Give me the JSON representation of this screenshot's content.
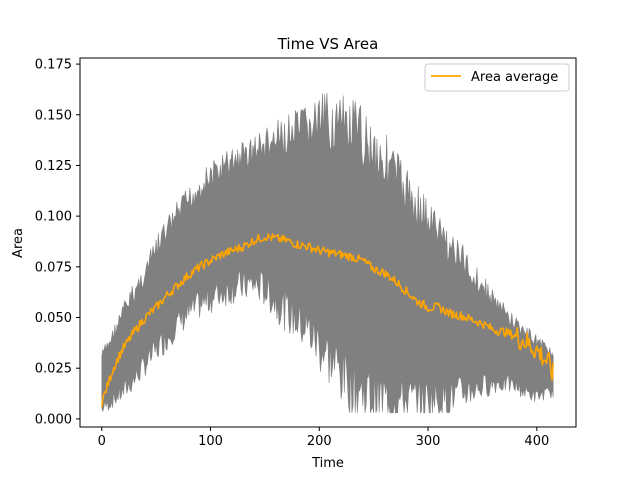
{
  "chart_data": {
    "type": "line",
    "title": "Time VS Area",
    "xlabel": "Time",
    "ylabel": "Area",
    "xlim": [
      -20,
      436
    ],
    "ylim": [
      -0.004,
      0.178
    ],
    "xticks": [
      0,
      100,
      200,
      300,
      400
    ],
    "xtick_labels": [
      "0",
      "100",
      "200",
      "300",
      "400"
    ],
    "yticks": [
      0.0,
      0.025,
      0.05,
      0.075,
      0.1,
      0.125,
      0.15,
      0.175
    ],
    "ytick_labels": [
      "0.000",
      "0.025",
      "0.050",
      "0.075",
      "0.100",
      "0.125",
      "0.150",
      "0.175"
    ],
    "grid": false,
    "legend": {
      "location": "top-right",
      "entries": [
        "Area average"
      ]
    },
    "colors": {
      "band": "#808080",
      "average": "#FFA500",
      "axes": "#000000",
      "legend_border": "#cccccc"
    },
    "series": [
      {
        "name": "Area average",
        "role": "line",
        "x": [
          0,
          5,
          10,
          15,
          20,
          30,
          40,
          50,
          60,
          70,
          80,
          90,
          100,
          110,
          120,
          130,
          140,
          150,
          160,
          170,
          180,
          190,
          200,
          210,
          220,
          230,
          240,
          250,
          260,
          270,
          280,
          290,
          300,
          310,
          320,
          330,
          340,
          350,
          360,
          370,
          380,
          390,
          400,
          405,
          410,
          415
        ],
        "values": [
          0.008,
          0.016,
          0.024,
          0.03,
          0.035,
          0.043,
          0.05,
          0.055,
          0.061,
          0.066,
          0.071,
          0.075,
          0.078,
          0.081,
          0.083,
          0.085,
          0.088,
          0.09,
          0.089,
          0.088,
          0.086,
          0.085,
          0.083,
          0.082,
          0.081,
          0.08,
          0.078,
          0.074,
          0.072,
          0.068,
          0.063,
          0.058,
          0.055,
          0.055,
          0.052,
          0.051,
          0.049,
          0.047,
          0.044,
          0.043,
          0.041,
          0.038,
          0.034,
          0.031,
          0.028,
          0.022
        ]
      },
      {
        "name": "Area range",
        "role": "band",
        "x": [
          0,
          10,
          20,
          30,
          40,
          50,
          60,
          70,
          80,
          90,
          100,
          110,
          120,
          130,
          140,
          150,
          160,
          170,
          180,
          190,
          200,
          210,
          220,
          230,
          240,
          250,
          260,
          270,
          280,
          290,
          300,
          310,
          320,
          330,
          340,
          350,
          360,
          370,
          380,
          390,
          400,
          410,
          415
        ],
        "lower": [
          0.004,
          0.008,
          0.012,
          0.018,
          0.025,
          0.032,
          0.038,
          0.045,
          0.05,
          0.054,
          0.057,
          0.06,
          0.062,
          0.063,
          0.064,
          0.061,
          0.055,
          0.05,
          0.045,
          0.04,
          0.032,
          0.025,
          0.018,
          0.012,
          0.008,
          0.006,
          0.005,
          0.005,
          0.005,
          0.005,
          0.006,
          0.007,
          0.008,
          0.01,
          0.012,
          0.014,
          0.016,
          0.016,
          0.015,
          0.012,
          0.01,
          0.012,
          0.012
        ],
        "upper": [
          0.034,
          0.045,
          0.058,
          0.068,
          0.078,
          0.09,
          0.1,
          0.108,
          0.115,
          0.122,
          0.127,
          0.131,
          0.135,
          0.138,
          0.141,
          0.144,
          0.147,
          0.15,
          0.153,
          0.157,
          0.16,
          0.162,
          0.16,
          0.158,
          0.155,
          0.15,
          0.143,
          0.135,
          0.125,
          0.118,
          0.11,
          0.102,
          0.095,
          0.088,
          0.08,
          0.072,
          0.064,
          0.057,
          0.051,
          0.046,
          0.042,
          0.038,
          0.034
        ]
      }
    ]
  }
}
